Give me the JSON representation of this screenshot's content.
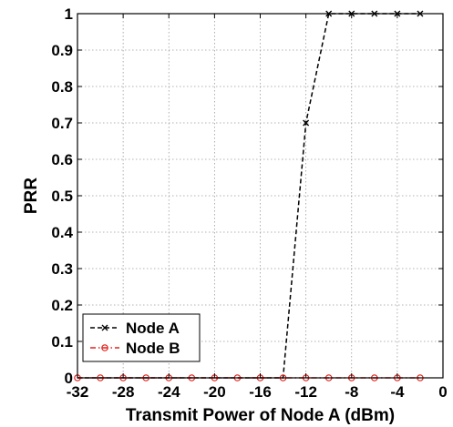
{
  "chart_data": {
    "type": "line",
    "xlabel": "Transmit Power of Node A (dBm)",
    "ylabel": "PRR",
    "xlim": [
      -32,
      0
    ],
    "ylim": [
      0,
      1
    ],
    "xticks": [
      -32,
      -28,
      -24,
      -20,
      -16,
      -12,
      -8,
      -4,
      0
    ],
    "xtick_labels": [
      "-32",
      "-28",
      "-24",
      "-20",
      "-16",
      "-12",
      "-8",
      "-4",
      "0"
    ],
    "yticks": [
      0,
      0.1,
      0.2,
      0.3,
      0.4,
      0.5,
      0.6,
      0.7,
      0.8,
      0.9,
      1
    ],
    "ytick_labels": [
      "0",
      "0.1",
      "0.2",
      "0.3",
      "0.4",
      "0.5",
      "0.6",
      "0.7",
      "0.8",
      "0.9",
      "1"
    ],
    "grid": true,
    "legend_position": "bottom-left",
    "series": [
      {
        "name": "Node A",
        "color": "#000000",
        "marker": "x",
        "line_style": "dashed",
        "x": [
          -32,
          -30,
          -28,
          -26,
          -24,
          -22,
          -20,
          -18,
          -16,
          -14,
          -12,
          -10,
          -8,
          -6,
          -4,
          -2
        ],
        "y": [
          0,
          0,
          0,
          0,
          0,
          0,
          0,
          0,
          0,
          0,
          0.7,
          1,
          1,
          1,
          1,
          1
        ],
        "marker_x": [
          -12,
          -10,
          -8,
          -6,
          -4,
          -2
        ]
      },
      {
        "name": "Node B",
        "color": "#e0201b",
        "marker": "circle",
        "line_style": "dash-dot",
        "x": [
          -32,
          -30,
          -28,
          -26,
          -24,
          -22,
          -20,
          -18,
          -16,
          -14,
          -12,
          -10,
          -8,
          -6,
          -4,
          -2
        ],
        "y": [
          0,
          0,
          0,
          0,
          0,
          0,
          0,
          0,
          0,
          0,
          0,
          0,
          0,
          0,
          0,
          0
        ],
        "marker_x": [
          -32,
          -30,
          -28,
          -26,
          -24,
          -22,
          -20,
          -18,
          -16,
          -14,
          -12,
          -10,
          -8,
          -6,
          -4,
          -2
        ]
      }
    ]
  }
}
